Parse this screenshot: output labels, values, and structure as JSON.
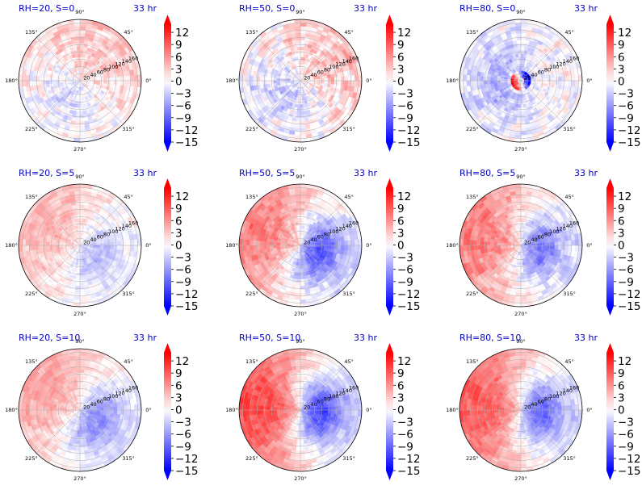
{
  "figure": {
    "time_label": "33 hr",
    "angle_labels": [
      "0°",
      "45°",
      "90°",
      "135°",
      "180°",
      "225°",
      "270°",
      "315°"
    ],
    "radial_labels": [
      "20",
      "40",
      "60",
      "80",
      "100",
      "120",
      "140",
      "160"
    ],
    "colorbar_ticks": [
      "12",
      "9",
      "6",
      "3",
      "0",
      "−3",
      "−6",
      "−9",
      "−12",
      "−15"
    ]
  },
  "colors": {
    "positive": "#ff0000",
    "negative": "#0000ff",
    "zero": "#ffffff",
    "title": "#0000cc"
  },
  "chart_data": [
    {
      "type": "heatmap",
      "projection": "polar",
      "title": "RH=20, S=0",
      "time": "33 hr",
      "theta_ticks_deg": [
        0,
        45,
        90,
        135,
        180,
        225,
        270,
        315
      ],
      "r_ticks": [
        20,
        40,
        60,
        80,
        100,
        120,
        140,
        160
      ],
      "colorbar": {
        "vmin": -15,
        "vmax": 14,
        "ticks": [
          12,
          9,
          6,
          3,
          0,
          -3,
          -6,
          -9,
          -12,
          -15
        ],
        "cmap": "bwr",
        "extend": "both"
      },
      "pattern": {
        "warm_amp": 3,
        "warm_center_deg": 60,
        "cold_amp": 2,
        "noise": 3
      }
    },
    {
      "type": "heatmap",
      "projection": "polar",
      "title": "RH=50, S=0",
      "time": "33 hr",
      "theta_ticks_deg": [
        0,
        45,
        90,
        135,
        180,
        225,
        270,
        315
      ],
      "r_ticks": [
        20,
        40,
        60,
        80,
        100,
        120,
        140,
        160
      ],
      "colorbar": {
        "vmin": -15,
        "vmax": 14,
        "ticks": [
          12,
          9,
          6,
          3,
          0,
          -3,
          -6,
          -9,
          -12,
          -15
        ],
        "cmap": "bwr",
        "extend": "both"
      },
      "pattern": {
        "warm_amp": 3,
        "warm_center_deg": 40,
        "cold_amp": 3,
        "noise": 3.5
      }
    },
    {
      "type": "heatmap",
      "projection": "polar",
      "title": "RH=80, S=0",
      "time": "33 hr",
      "theta_ticks_deg": [
        0,
        45,
        90,
        135,
        180,
        225,
        270,
        315
      ],
      "r_ticks": [
        20,
        40,
        60,
        80,
        100,
        120,
        140,
        160
      ],
      "colorbar": {
        "vmin": -15,
        "vmax": 14,
        "ticks": [
          12,
          9,
          6,
          3,
          0,
          -3,
          -6,
          -9,
          -12,
          -15
        ],
        "cmap": "bwr",
        "extend": "both"
      },
      "pattern": {
        "warm_amp": 0,
        "warm_center_deg": 0,
        "cold_amp": 5,
        "noise": 3,
        "core": 12
      }
    },
    {
      "type": "heatmap",
      "projection": "polar",
      "title": "RH=20, S=5",
      "time": "33 hr",
      "theta_ticks_deg": [
        0,
        45,
        90,
        135,
        180,
        225,
        270,
        315
      ],
      "r_ticks": [
        20,
        40,
        60,
        80,
        100,
        120,
        140,
        160
      ],
      "colorbar": {
        "vmin": -15,
        "vmax": 14,
        "ticks": [
          12,
          9,
          6,
          3,
          0,
          -3,
          -6,
          -9,
          -12,
          -15
        ],
        "cmap": "bwr",
        "extend": "both"
      },
      "pattern": {
        "warm_amp": 4,
        "warm_center_deg": 150,
        "cold_amp": 4,
        "noise": 2
      }
    },
    {
      "type": "heatmap",
      "projection": "polar",
      "title": "RH=50, S=5",
      "time": "33 hr",
      "theta_ticks_deg": [
        0,
        45,
        90,
        135,
        180,
        225,
        270,
        315
      ],
      "r_ticks": [
        20,
        40,
        60,
        80,
        100,
        120,
        140,
        160
      ],
      "colorbar": {
        "vmin": -15,
        "vmax": 14,
        "ticks": [
          12,
          9,
          6,
          3,
          0,
          -3,
          -6,
          -9,
          -12,
          -15
        ],
        "cmap": "bwr",
        "extend": "both"
      },
      "pattern": {
        "warm_amp": 7,
        "warm_center_deg": 160,
        "cold_amp": 10,
        "noise": 2.5
      }
    },
    {
      "type": "heatmap",
      "projection": "polar",
      "title": "RH=80, S=5",
      "time": "33 hr",
      "theta_ticks_deg": [
        0,
        45,
        90,
        135,
        180,
        225,
        270,
        315
      ],
      "r_ticks": [
        20,
        40,
        60,
        80,
        100,
        120,
        140,
        160
      ],
      "colorbar": {
        "vmin": -15,
        "vmax": 14,
        "ticks": [
          12,
          9,
          6,
          3,
          0,
          -3,
          -6,
          -9,
          -12,
          -15
        ],
        "cmap": "bwr",
        "extend": "both"
      },
      "pattern": {
        "warm_amp": 7,
        "warm_center_deg": 170,
        "cold_amp": 8,
        "noise": 2.5
      }
    },
    {
      "type": "heatmap",
      "projection": "polar",
      "title": "RH=20, S=10",
      "time": "33 hr",
      "theta_ticks_deg": [
        0,
        45,
        90,
        135,
        180,
        225,
        270,
        315
      ],
      "r_ticks": [
        20,
        40,
        60,
        80,
        100,
        120,
        140,
        160
      ],
      "colorbar": {
        "vmin": -15,
        "vmax": 14,
        "ticks": [
          12,
          9,
          6,
          3,
          0,
          -3,
          -6,
          -9,
          -12,
          -15
        ],
        "cmap": "bwr",
        "extend": "both"
      },
      "pattern": {
        "warm_amp": 5,
        "warm_center_deg": 150,
        "cold_amp": 7,
        "noise": 2
      }
    },
    {
      "type": "heatmap",
      "projection": "polar",
      "title": "RH=50, S=10",
      "time": "33 hr",
      "theta_ticks_deg": [
        0,
        45,
        90,
        135,
        180,
        225,
        270,
        315
      ],
      "r_ticks": [
        20,
        40,
        60,
        80,
        100,
        120,
        140,
        160
      ],
      "colorbar": {
        "vmin": -15,
        "vmax": 14,
        "ticks": [
          12,
          9,
          6,
          3,
          0,
          -3,
          -6,
          -9,
          -12,
          -15
        ],
        "cmap": "bwr",
        "extend": "both"
      },
      "pattern": {
        "warm_amp": 10,
        "warm_center_deg": 175,
        "cold_amp": 11,
        "noise": 2
      }
    },
    {
      "type": "heatmap",
      "projection": "polar",
      "title": "RH=80, S=10",
      "time": "33 hr",
      "theta_ticks_deg": [
        0,
        45,
        90,
        135,
        180,
        225,
        270,
        315
      ],
      "r_ticks": [
        20,
        40,
        60,
        80,
        100,
        120,
        140,
        160
      ],
      "colorbar": {
        "vmin": -15,
        "vmax": 14,
        "ticks": [
          12,
          9,
          6,
          3,
          0,
          -3,
          -6,
          -9,
          -12,
          -15
        ],
        "cmap": "bwr",
        "extend": "both"
      },
      "pattern": {
        "warm_amp": 9,
        "warm_center_deg": 175,
        "cold_amp": 9,
        "noise": 2
      }
    }
  ]
}
